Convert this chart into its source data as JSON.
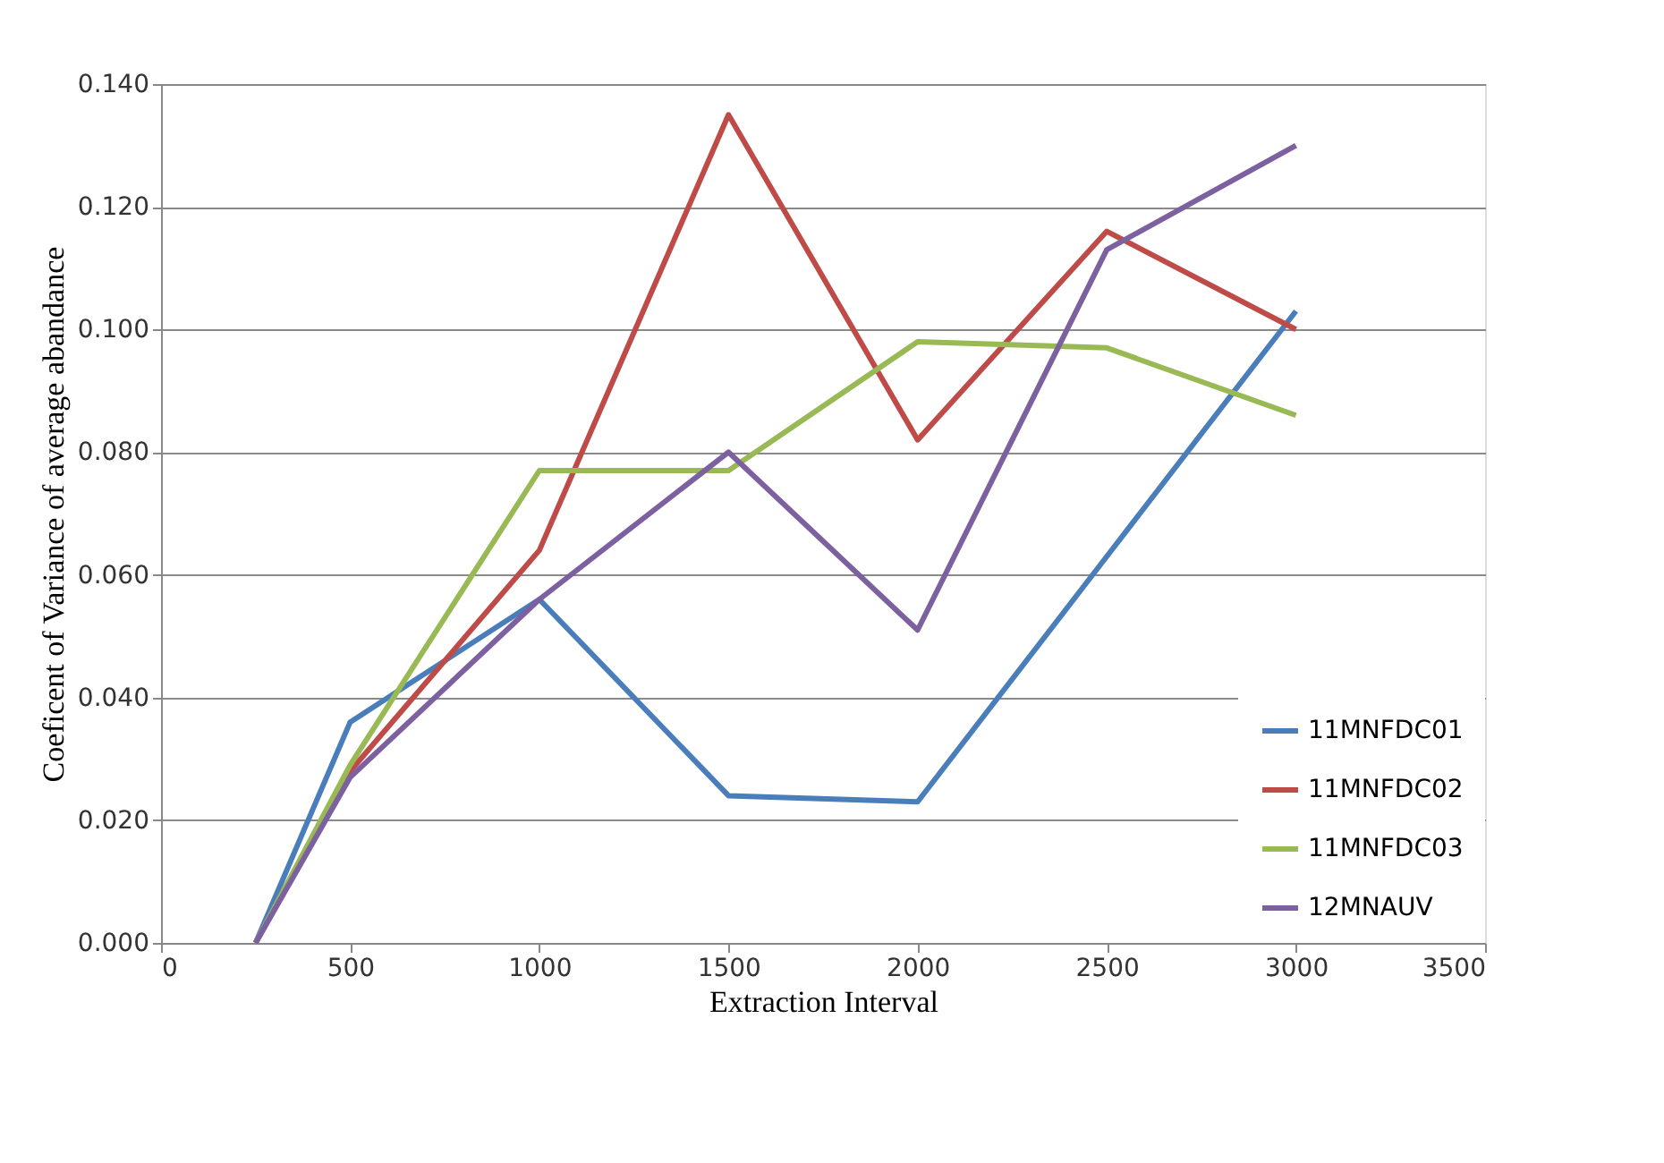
{
  "chart_data": {
    "type": "line",
    "xlabel": "Extraction Interval",
    "ylabel": "Coeficent of Variance of average abandance",
    "x": [
      250,
      500,
      1000,
      1500,
      2000,
      2500,
      3000
    ],
    "series": [
      {
        "name": "11MNFDC01",
        "color": "#4a7ebb",
        "values": [
          0,
          0.036,
          0.056,
          0.024,
          0.023,
          0.063,
          0.103
        ]
      },
      {
        "name": "11MNFDC02",
        "color": "#be4b48",
        "values": [
          0,
          0.028,
          0.064,
          0.135,
          0.082,
          0.116,
          0.1
        ]
      },
      {
        "name": "11MNFDC03",
        "color": "#98b954",
        "values": [
          0,
          0.029,
          0.077,
          0.077,
          0.098,
          0.097,
          0.086
        ]
      },
      {
        "name": "12MNAUV",
        "color": "#7d60a0",
        "values": [
          0,
          0.027,
          0.056,
          0.08,
          0.051,
          0.113,
          0.13
        ]
      }
    ],
    "xlim": [
      0,
      3500
    ],
    "xticks": [
      0,
      500,
      1000,
      1500,
      2000,
      2500,
      3000,
      3500
    ],
    "ylim": [
      0,
      0.14
    ],
    "yticks": [
      {
        "value": 0,
        "label": "0.000"
      },
      {
        "value": 0.02,
        "label": "0.020"
      },
      {
        "value": 0.04,
        "label": "0.040"
      },
      {
        "value": 0.06,
        "label": "0.060"
      },
      {
        "value": 0.08,
        "label": "0.080"
      },
      {
        "value": 0.1,
        "label": "0.100"
      },
      {
        "value": 0.12,
        "label": "0.120"
      },
      {
        "value": 0.14,
        "label": "0.140"
      }
    ],
    "grid": "y",
    "legend": "bottom right",
    "marker": "none",
    "line_style": "solid"
  }
}
